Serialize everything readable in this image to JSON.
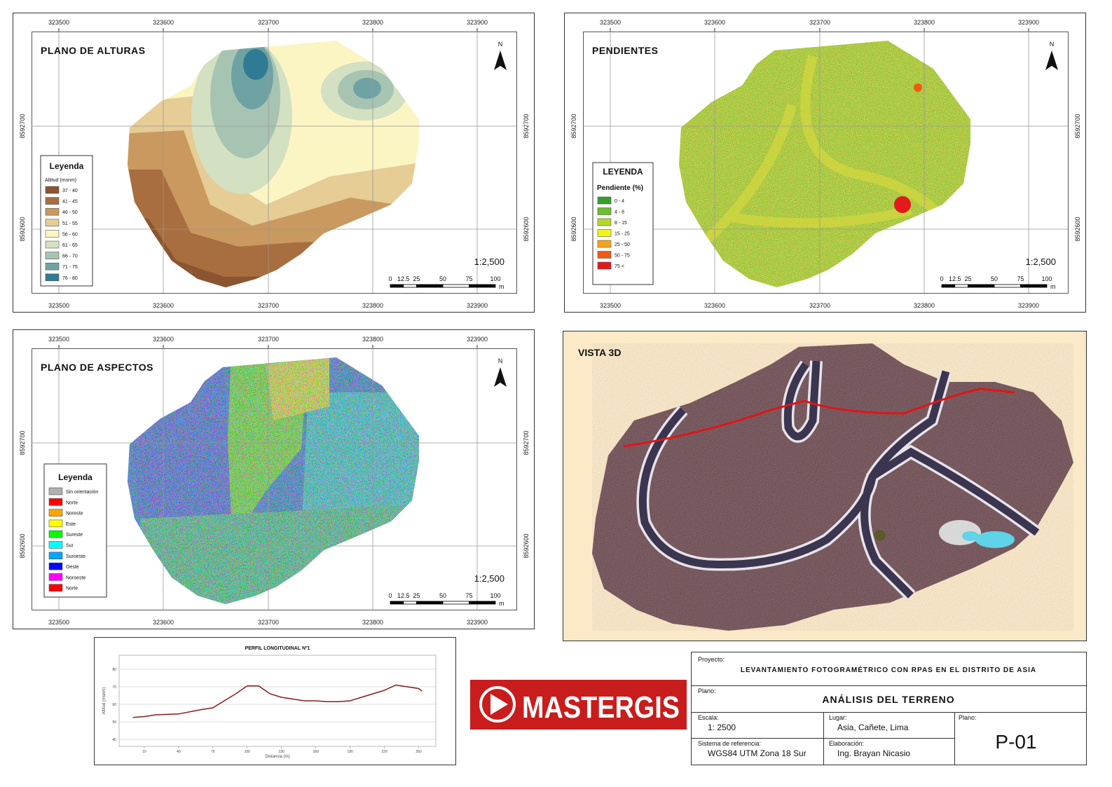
{
  "maps": [
    {
      "title": "PLANO DE ALTURAS",
      "x_labels": [
        323500,
        323600,
        323700,
        323800,
        323900
      ],
      "y_labels": [
        8592700,
        8592600
      ],
      "north": "N",
      "scale": "1:2,500",
      "scalebar": {
        "ticks": [
          0,
          12.5,
          25,
          50,
          75,
          100
        ],
        "unit": "m"
      },
      "legend": {
        "title": "Leyenda",
        "subtitle": "Altitud (msnm)",
        "items": [
          {
            "label": "37 - 40",
            "color": "#8a5530"
          },
          {
            "label": "41 - 45",
            "color": "#a86e3f"
          },
          {
            "label": "46 - 50",
            "color": "#c9995f"
          },
          {
            "label": "51 - 55",
            "color": "#e6cc95"
          },
          {
            "label": "56 - 60",
            "color": "#fbf5c4"
          },
          {
            "label": "61 - 65",
            "color": "#d3e0c2"
          },
          {
            "label": "66 - 70",
            "color": "#a7c4b2"
          },
          {
            "label": "71 - 75",
            "color": "#6fa3a3"
          },
          {
            "label": "76 - 80",
            "color": "#2f7b93"
          }
        ]
      }
    },
    {
      "title": "PENDIENTES",
      "x_labels": [
        323500,
        323600,
        323700,
        323800,
        323900
      ],
      "y_labels": [
        8592700,
        8592600
      ],
      "north": "N",
      "scale": "1:2,500",
      "scalebar": {
        "ticks": [
          0,
          12.5,
          25,
          50,
          75,
          100
        ],
        "unit": "m"
      },
      "legend": {
        "title": "LEYENDA",
        "subtitle": "Pendiente (%)",
        "items": [
          {
            "label": "0 - 4",
            "color": "#33a02c"
          },
          {
            "label": "4 - 8",
            "color": "#6abf2a"
          },
          {
            "label": "8 - 15",
            "color": "#b5d82c"
          },
          {
            "label": "15 - 25",
            "color": "#f4f516"
          },
          {
            "label": "25 - 50",
            "color": "#f9a31a"
          },
          {
            "label": "50 - 75",
            "color": "#f25a12"
          },
          {
            "label": "75 <",
            "color": "#e3191c"
          }
        ]
      }
    },
    {
      "title": "PLANO DE ASPECTOS",
      "x_labels": [
        323500,
        323600,
        323700,
        323800,
        323900
      ],
      "y_labels": [
        8592700,
        8592600
      ],
      "north": "N",
      "scale": "1:2,500",
      "scalebar": {
        "ticks": [
          0,
          12.5,
          25,
          50,
          75,
          100
        ],
        "unit": "m"
      },
      "legend": {
        "title": "Leyenda",
        "items": [
          {
            "label": "Sin orientación",
            "color": "#b0b0b0"
          },
          {
            "label": "Norte",
            "color": "#ff0000"
          },
          {
            "label": "Noreste",
            "color": "#ffa500"
          },
          {
            "label": "Este",
            "color": "#ffff00"
          },
          {
            "label": "Sureste",
            "color": "#00ff00"
          },
          {
            "label": "Sur",
            "color": "#00ffff"
          },
          {
            "label": "Suroeste",
            "color": "#00a5ff"
          },
          {
            "label": "Oeste",
            "color": "#0000ff"
          },
          {
            "label": "Noroeste",
            "color": "#ff00ff"
          },
          {
            "label": "Norte",
            "color": "#ff0000"
          }
        ]
      }
    }
  ],
  "view3d": {
    "title": "VISTA 3D"
  },
  "profile": {
    "title": "PERFIL LONGITUDINAL Nº1",
    "x_label": "Distancia (m)",
    "y_label": "Altitud (msnm)",
    "color": "#8b1a1a",
    "x": [
      0,
      10,
      20,
      40,
      60,
      70,
      80,
      90,
      100,
      110,
      120,
      130,
      140,
      150,
      160,
      170,
      180,
      190,
      200,
      220,
      230,
      240,
      250,
      253
    ],
    "values": [
      52.5,
      53,
      54,
      54.5,
      57,
      58,
      62,
      66,
      70.5,
      70.5,
      66,
      64,
      63,
      62,
      62,
      61.5,
      61.5,
      62,
      64,
      68,
      71,
      70,
      69,
      67.5
    ],
    "xlim": [
      -12,
      265
    ],
    "ylim": [
      36,
      88
    ],
    "xticks": [
      10,
      40,
      70,
      100,
      130,
      160,
      190,
      220,
      250
    ],
    "yticks": [
      40,
      50,
      60,
      70,
      80
    ]
  },
  "logo": "MASTERGIS",
  "title_block": {
    "project_label": "Proyecto:",
    "project": "LEVANTAMIENTO FOTOGRAMÉTRICO CON RPAS EN EL DISTRITO DE ASIA",
    "plan_label": "Plano:",
    "plan": "ANÁLISIS DEL TERRENO",
    "scale_label": "Escala:",
    "scale": "1: 2500",
    "place_label": "Lugar:",
    "place": "Asia, Cañete, Lima",
    "sheet_label": "Plano:",
    "sheet": "P-01",
    "crs_label": "Sistema de referencia:",
    "crs": "WGS84 UTM Zona 18 Sur",
    "author_label": "Elaboración:",
    "author": "Ing. Brayan Nicasio"
  }
}
